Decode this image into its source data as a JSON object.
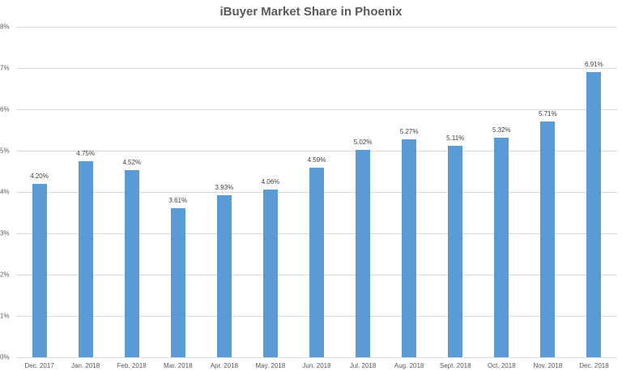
{
  "chart_data": {
    "type": "bar",
    "title": "iBuyer Market Share in Phoenix",
    "xlabel": "",
    "ylabel": "",
    "ylim": [
      0,
      8
    ],
    "yticks": [
      "0%",
      "1%",
      "2%",
      "3%",
      "4%",
      "5%",
      "6%",
      "7%",
      "8%"
    ],
    "grid": true,
    "legend": "none",
    "bar_color": "#5b9bd5",
    "categories": [
      "Dec. 2017",
      "Jan. 2018",
      "Feb. 2018",
      "Mar. 2018",
      "Apr. 2018",
      "May. 2018",
      "Jun. 2018",
      "Jul. 2018",
      "Aug. 2018",
      "Sept. 2018",
      "Oct. 2018",
      "Nov. 2018",
      "Dec. 2018"
    ],
    "values": [
      4.2,
      4.75,
      4.52,
      3.61,
      3.93,
      4.06,
      4.59,
      5.02,
      5.27,
      5.11,
      5.32,
      5.71,
      6.91
    ],
    "data_labels": [
      "4.20%",
      "4.75%",
      "4.52%",
      "3.61%",
      "3.93%",
      "4.06%",
      "4.59%",
      "5.02%",
      "5.27%",
      "5.11%",
      "5.32%",
      "5.71%",
      "6.91%"
    ]
  }
}
